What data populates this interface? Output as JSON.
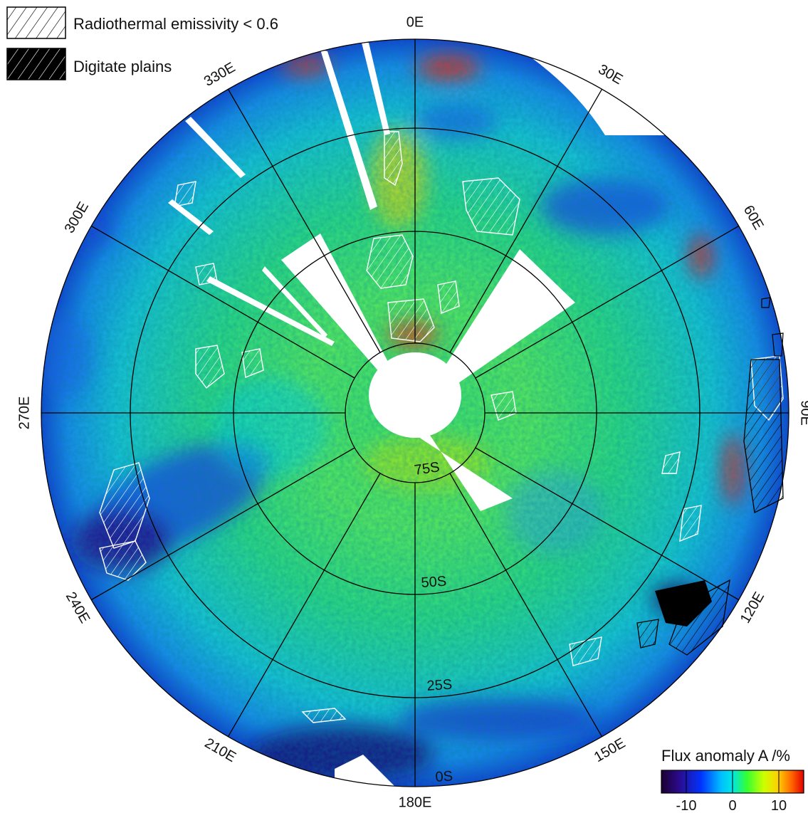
{
  "legend": {
    "items": [
      {
        "label": "Radiothermal emissivity < 0.6",
        "swatch": "hatch-white"
      },
      {
        "label": "Digitate plains",
        "swatch": "hatch-black"
      }
    ]
  },
  "map": {
    "longitude_labels": [
      "0E",
      "30E",
      "60E",
      "90E",
      "120E",
      "150E",
      "180E",
      "210E",
      "240E",
      "270E",
      "300E",
      "330E"
    ],
    "latitude_labels": [
      "75S",
      "50S",
      "25S",
      "0S"
    ],
    "projection": "polar (south pole centered)"
  },
  "colorbar": {
    "title": "Flux anomaly A /%",
    "tick_labels": [
      "-10",
      "0",
      "10"
    ],
    "stops": [
      "#1a0030",
      "#2b0a8a",
      "#0033ff",
      "#00bfff",
      "#00e6e6",
      "#33ff33",
      "#ccff00",
      "#ffd000",
      "#ff6000",
      "#e00000"
    ]
  },
  "colors": {
    "background": "#ffffff",
    "grid": "#000000",
    "low_emissivity_outline": "#ffffff",
    "digitate_plains": "#000000"
  }
}
